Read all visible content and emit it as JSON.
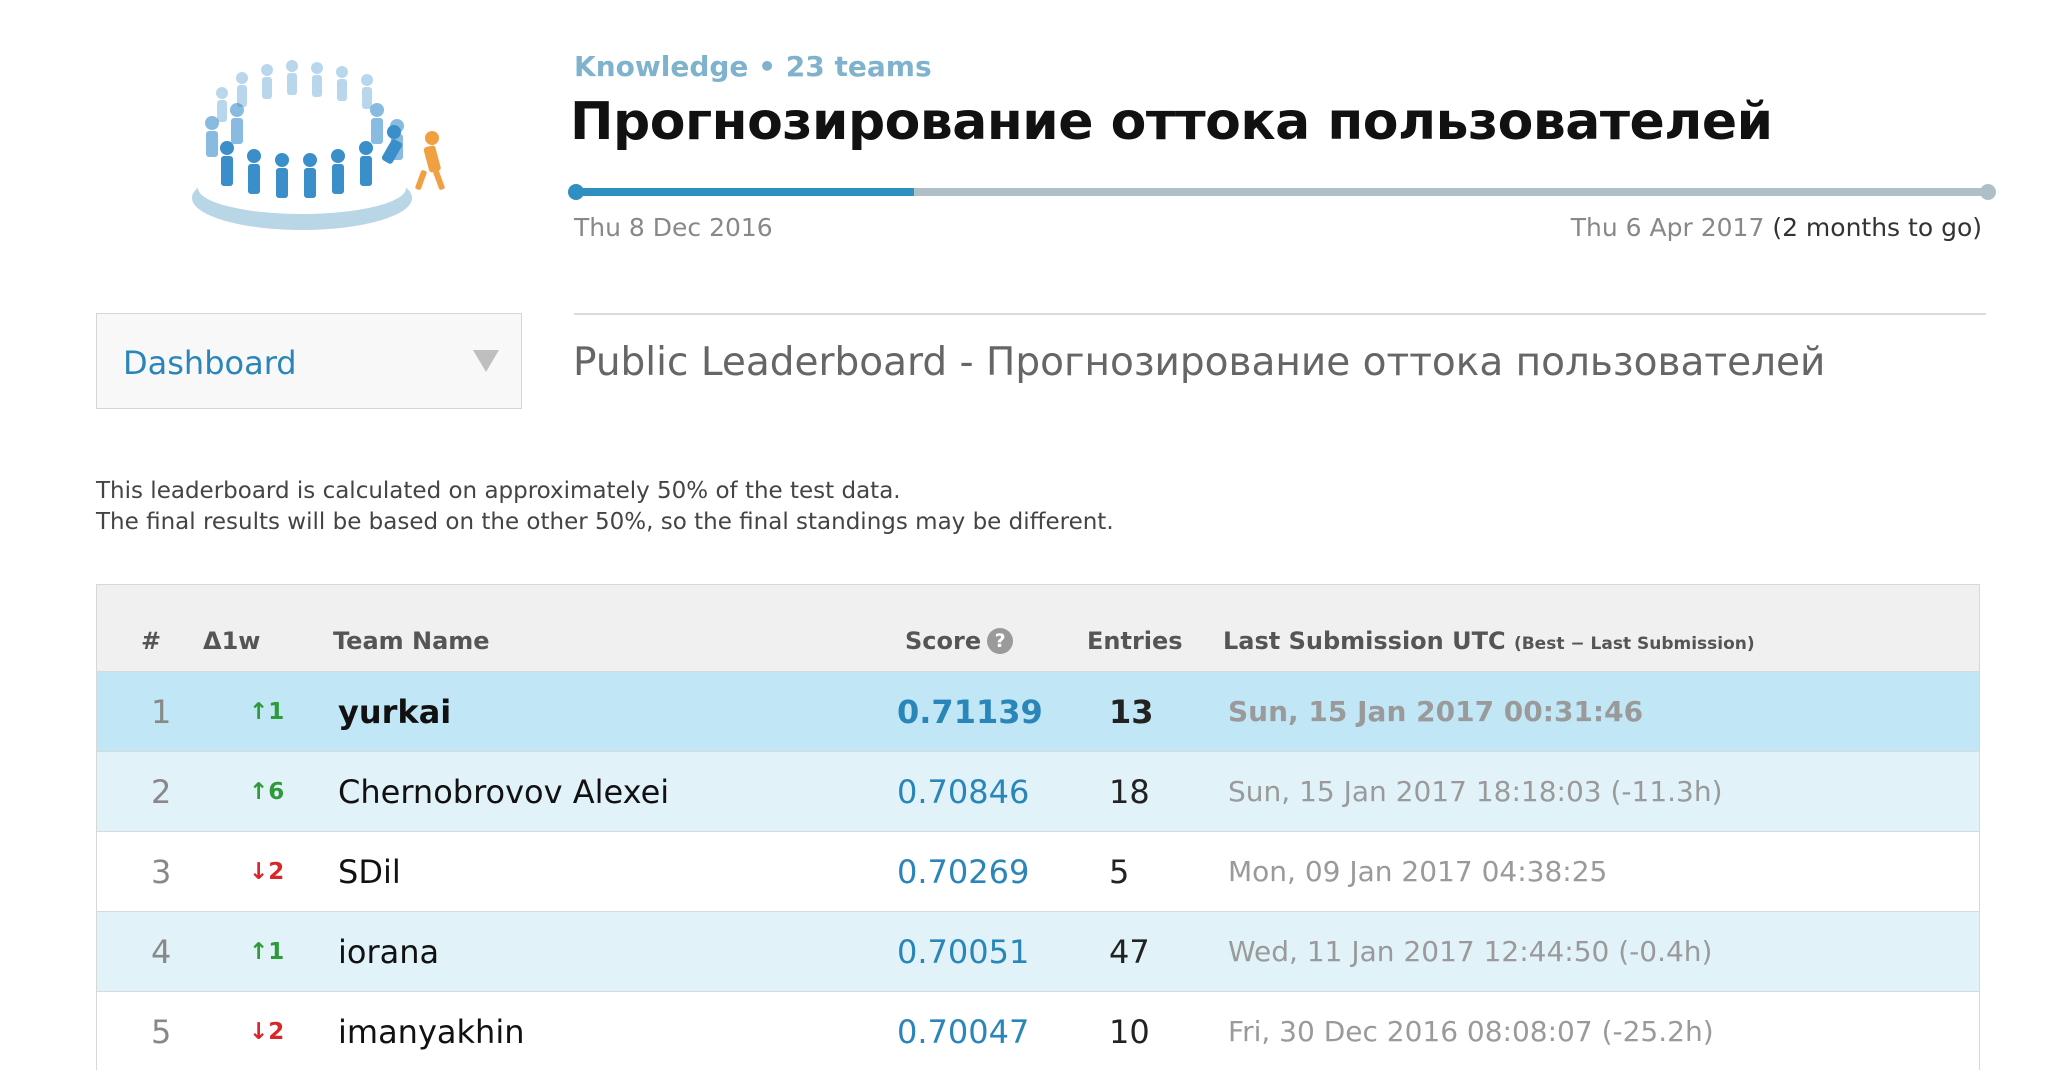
{
  "header": {
    "category": "Knowledge • 23 teams",
    "title": "Прогнозирование оттока пользователей",
    "start_date": "Thu 8 Dec 2016",
    "end_date": "Thu 6 Apr 2017",
    "time_left": "(2 months to go)",
    "progress_fraction": 0.24
  },
  "nav": {
    "dropdown_value": "Dashboard"
  },
  "leaderboard": {
    "title": "Public Leaderboard - Прогнозирование оттока пользователей",
    "note_line1": "This leaderboard is calculated on approximately 50% of the test data.",
    "note_line2": "The final results will be based on the other 50%, so the final standings may be different.",
    "columns": {
      "rank": "#",
      "delta": "Δ1w",
      "team": "Team Name",
      "score": "Score",
      "entries": "Entries",
      "last_submission": "Last Submission UTC",
      "last_submission_note": "(Best − Last Submission)"
    },
    "rows": [
      {
        "rank": "1",
        "delta": "↑1",
        "team": "yurkai",
        "score": "0.71139",
        "entries": "13",
        "date": "Sun, 15 Jan 2017 00:31:46"
      },
      {
        "rank": "2",
        "delta": "↑6",
        "team": "Chernobrovov Alexei",
        "score": "0.70846",
        "entries": "18",
        "date": "Sun, 15 Jan 2017 18:18:03 (-11.3h)"
      },
      {
        "rank": "3",
        "delta": "↓2",
        "team": "SDil",
        "score": "0.70269",
        "entries": "5",
        "date": "Mon, 09 Jan 2017 04:38:25"
      },
      {
        "rank": "4",
        "delta": "↑1",
        "team": "iorana",
        "score": "0.70051",
        "entries": "47",
        "date": "Wed, 11 Jan 2017 12:44:50 (-0.4h)"
      },
      {
        "rank": "5",
        "delta": "↓2",
        "team": "imanyakhin",
        "score": "0.70047",
        "entries": "10",
        "date": "Fri, 30 Dec 2016 08:08:07 (-25.2h)"
      }
    ]
  },
  "colors": {
    "accent": "#2a86b8",
    "progress": "#2f8fc1",
    "up": "#2e9a3a",
    "down": "#d9262b",
    "highlight_row": "#c1e6f6",
    "alt_row": "#e2f2f9"
  },
  "icons": {
    "help": "question-circle-icon",
    "dropdown": "triangle-down-icon",
    "logo": "crowd-logo"
  }
}
